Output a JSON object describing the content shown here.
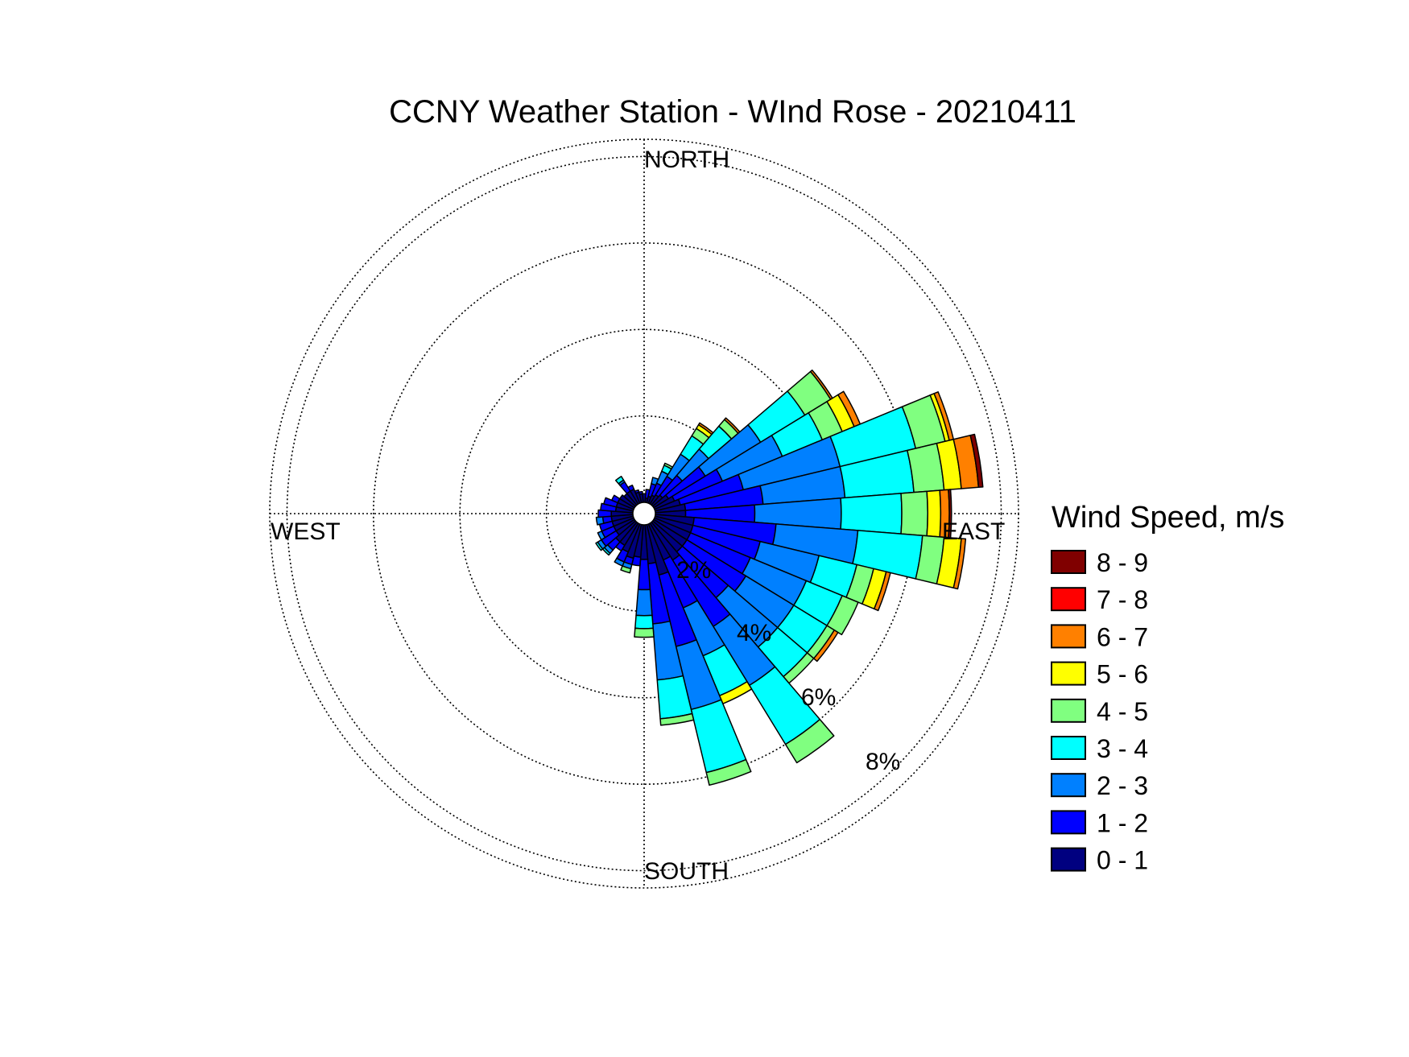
{
  "chart_data": {
    "type": "wind-rose",
    "title": "CCNY Weather Station - WInd Rose - 20210411",
    "direction_labels": {
      "north": "NORTH",
      "east": "EAST",
      "south": "SOUTH",
      "west": "WEST"
    },
    "radial_ticks": [
      {
        "value": 2,
        "label": "2%"
      },
      {
        "value": 4,
        "label": "4%"
      },
      {
        "value": 6,
        "label": "6%"
      },
      {
        "value": 8,
        "label": "8%"
      }
    ],
    "rmax_percent": 8.4,
    "grid": true,
    "sector_width_deg": 9,
    "legend": {
      "title": "Wind Speed, m/s",
      "placement": "right",
      "bins": [
        {
          "label": "8 - 9",
          "color": "#800000"
        },
        {
          "label": "7 - 8",
          "color": "#ff0000"
        },
        {
          "label": "6 - 7",
          "color": "#ff8000"
        },
        {
          "label": "5 - 6",
          "color": "#ffff00"
        },
        {
          "label": "4 - 5",
          "color": "#80ff80"
        },
        {
          "label": "3 - 4",
          "color": "#00ffff"
        },
        {
          "label": "2 - 3",
          "color": "#0080ff"
        },
        {
          "label": "1 - 2",
          "color": "#0000ff"
        },
        {
          "label": "0 - 1",
          "color": "#000080"
        }
      ]
    },
    "bin_order_inner_to_outer": [
      "0 - 1",
      "1 - 2",
      "2 - 3",
      "3 - 4",
      "4 - 5",
      "5 - 6",
      "6 - 7",
      "7 - 8",
      "8 - 9"
    ],
    "sectors": [
      {
        "dir": 9,
        "values": [
          0.1,
          0.2,
          0,
          0,
          0,
          0,
          0,
          0,
          0
        ]
      },
      {
        "dir": 18,
        "values": [
          0.15,
          0.3,
          0.15,
          0,
          0,
          0,
          0,
          0,
          0
        ]
      },
      {
        "dir": 27,
        "values": [
          0.2,
          0.3,
          0.3,
          0.15,
          0.05,
          0,
          0,
          0,
          0
        ]
      },
      {
        "dir": 36,
        "values": [
          0.25,
          0.5,
          0.6,
          0.5,
          0.2,
          0.1,
          0.05,
          0,
          0
        ]
      },
      {
        "dir": 45,
        "values": [
          0.3,
          0.6,
          0.8,
          0.7,
          0.2,
          0,
          0.05,
          0,
          0
        ]
      },
      {
        "dir": 54,
        "values": [
          0.4,
          1.0,
          1.5,
          1.2,
          0.7,
          0,
          0.05,
          0,
          0
        ]
      },
      {
        "dir": 63,
        "values": [
          0.5,
          1.2,
          1.5,
          1.0,
          0.5,
          0.3,
          0.15,
          0,
          0
        ]
      },
      {
        "dir": 72,
        "values": [
          0.6,
          1.5,
          2.3,
          1.8,
          0.7,
          0.1,
          0.1,
          0,
          0
        ]
      },
      {
        "dir": 81,
        "values": [
          0.7,
          1.8,
          1.9,
          1.6,
          0.7,
          0.4,
          0.4,
          0,
          0.1
        ]
      },
      {
        "dir": 90,
        "values": [
          0.7,
          1.6,
          2.0,
          1.4,
          0.6,
          0.3,
          0.2,
          0,
          0.05
        ]
      },
      {
        "dir": 99,
        "values": [
          0.9,
          1.9,
          1.9,
          1.5,
          0.5,
          0.4,
          0.1,
          0,
          0
        ]
      },
      {
        "dir": 108,
        "values": [
          0.9,
          1.6,
          1.4,
          0.9,
          0.4,
          0.3,
          0.1,
          0,
          0
        ]
      },
      {
        "dir": 117,
        "values": [
          0.9,
          1.5,
          1.4,
          0.9,
          0.4,
          0,
          0,
          0,
          0
        ]
      },
      {
        "dir": 126,
        "values": [
          0.9,
          1.6,
          1.3,
          0.9,
          0.2,
          0,
          0.1,
          0,
          0
        ]
      },
      {
        "dir": 135,
        "values": [
          0.9,
          1.4,
          1.5,
          0.9,
          0.2,
          0,
          0,
          0,
          0
        ]
      },
      {
        "dir": 144,
        "values": [
          1.0,
          1.8,
          1.6,
          1.6,
          0.5,
          0,
          0,
          0,
          0
        ]
      },
      {
        "dir": 153,
        "values": [
          0.9,
          1.2,
          1.2,
          1.0,
          0,
          0.2,
          0,
          0,
          0
        ]
      },
      {
        "dir": 162,
        "values": [
          1.2,
          1.7,
          1.5,
          1.5,
          0.3,
          0,
          0,
          0,
          0
        ]
      },
      {
        "dir": 171,
        "values": [
          0.9,
          1.4,
          1.3,
          0.9,
          0.15,
          0,
          0,
          0,
          0
        ]
      },
      {
        "dir": 180,
        "values": [
          0.8,
          0.7,
          0.6,
          0.3,
          0.2,
          0,
          0,
          0,
          0
        ]
      },
      {
        "dir": 189,
        "values": [
          0.75,
          0.2,
          0,
          0,
          0,
          0,
          0,
          0,
          0
        ]
      },
      {
        "dir": 198,
        "values": [
          0.8,
          0.15,
          0.1,
          0,
          0.1,
          0,
          0,
          0,
          0
        ]
      },
      {
        "dir": 207,
        "values": [
          0.7,
          0.25,
          0.1,
          0,
          0,
          0,
          0,
          0,
          0
        ]
      },
      {
        "dir": 216,
        "values": [
          0.6,
          0.15,
          0,
          0,
          0,
          0,
          0,
          0,
          0
        ]
      },
      {
        "dir": 225,
        "values": [
          0.6,
          0.25,
          0.1,
          0.05,
          0,
          0,
          0,
          0,
          0
        ]
      },
      {
        "dir": 234,
        "values": [
          0.5,
          0.4,
          0.1,
          0.05,
          0,
          0,
          0,
          0,
          0
        ]
      },
      {
        "dir": 243,
        "values": [
          0.5,
          0.3,
          0.1,
          0,
          0,
          0,
          0,
          0,
          0
        ]
      },
      {
        "dir": 252,
        "values": [
          0.5,
          0.3,
          0,
          0,
          0,
          0,
          0,
          0,
          0
        ]
      },
      {
        "dir": 261,
        "values": [
          0.5,
          0.2,
          0.15,
          0,
          0,
          0,
          0,
          0,
          0
        ]
      },
      {
        "dir": 270,
        "values": [
          0.5,
          0.3,
          0,
          0,
          0,
          0,
          0,
          0,
          0
        ]
      },
      {
        "dir": 279,
        "values": [
          0.4,
          0.35,
          0,
          0,
          0,
          0,
          0,
          0,
          0
        ]
      },
      {
        "dir": 288,
        "values": [
          0.4,
          0.3,
          0,
          0,
          0,
          0,
          0,
          0,
          0
        ]
      },
      {
        "dir": 297,
        "values": [
          0.4,
          0.15,
          0,
          0,
          0,
          0,
          0,
          0,
          0
        ]
      },
      {
        "dir": 306,
        "values": [
          0.4,
          0,
          0,
          0,
          0,
          0,
          0,
          0,
          0
        ]
      },
      {
        "dir": 315,
        "values": [
          0.35,
          0,
          0,
          0,
          0,
          0,
          0,
          0,
          0
        ]
      },
      {
        "dir": 324,
        "values": [
          0.35,
          0.25,
          0.05,
          0.1,
          0,
          0,
          0,
          0,
          0
        ]
      },
      {
        "dir": 333,
        "values": [
          0.35,
          0.1,
          0,
          0,
          0,
          0,
          0,
          0,
          0
        ]
      },
      {
        "dir": 342,
        "values": [
          0.25,
          0.05,
          0,
          0,
          0,
          0,
          0,
          0,
          0
        ]
      },
      {
        "dir": 351,
        "values": [
          0.2,
          0.05,
          0,
          0,
          0,
          0,
          0,
          0,
          0
        ]
      },
      {
        "dir": 0,
        "values": [
          0.2,
          0,
          0,
          0,
          0,
          0,
          0,
          0,
          0
        ]
      }
    ]
  }
}
